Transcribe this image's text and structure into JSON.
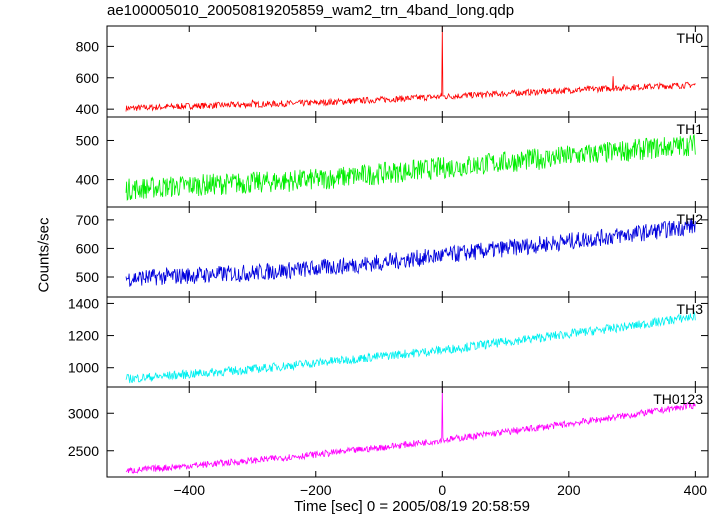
{
  "title": "ae100005010_20050819205859_wam2_trn_4band_long.qdp",
  "xlabel": "Time [sec] 0 = 2005/08/19 20:58:59",
  "ylabel": "Counts/sec",
  "chart_data": {
    "type": "line",
    "title": "ae100005010_20050819205859_wam2_trn_4band_long.qdp",
    "xlabel": "Time [sec] 0 = 2005/08/19 20:58:59",
    "ylabel": "Counts/sec",
    "xlim": [
      -530,
      420
    ],
    "x_ticks": [
      -400,
      -200,
      0,
      200,
      400
    ],
    "grid": false,
    "series": [
      {
        "name": "TH0",
        "color": "#ff0000",
        "ylim": [
          350,
          930
        ],
        "y_ticks": [
          400,
          600,
          800
        ],
        "x": [
          -500,
          -400,
          -300,
          -200,
          -100,
          0,
          100,
          200,
          300,
          400
        ],
        "y": [
          405,
          420,
          430,
          440,
          460,
          480,
          500,
          520,
          540,
          555
        ],
        "noise": 20,
        "spikes": [
          {
            "x": 0,
            "y": 930
          },
          {
            "x": -300,
            "y": 460
          },
          {
            "x": 270,
            "y": 610
          }
        ]
      },
      {
        "name": "TH1",
        "color": "#00ee00",
        "ylim": [
          330,
          560
        ],
        "y_ticks": [
          400,
          500
        ],
        "x": [
          -500,
          -400,
          -300,
          -200,
          -100,
          0,
          100,
          200,
          300,
          400
        ],
        "y": [
          375,
          385,
          392,
          400,
          415,
          430,
          445,
          460,
          475,
          490
        ],
        "noise": 28,
        "spikes": []
      },
      {
        "name": "TH2",
        "color": "#0000dd",
        "ylim": [
          430,
          745
        ],
        "y_ticks": [
          500,
          600,
          700
        ],
        "x": [
          -500,
          -400,
          -300,
          -200,
          -100,
          0,
          100,
          200,
          300,
          400
        ],
        "y": [
          495,
          505,
          515,
          530,
          550,
          575,
          600,
          625,
          650,
          680
        ],
        "noise": 30,
        "spikes": []
      },
      {
        "name": "TH3",
        "color": "#00f0f0",
        "ylim": [
          880,
          1440
        ],
        "y_ticks": [
          1000,
          1200,
          1400
        ],
        "x": [
          -500,
          -400,
          -300,
          -200,
          -100,
          0,
          100,
          200,
          300,
          400
        ],
        "y": [
          930,
          960,
          990,
          1030,
          1070,
          1110,
          1160,
          1210,
          1260,
          1320
        ],
        "noise": 28,
        "spikes": []
      },
      {
        "name": "TH0123",
        "color": "#ff00ff",
        "ylim": [
          2150,
          3350
        ],
        "y_ticks": [
          2500,
          3000
        ],
        "x": [
          -500,
          -400,
          -300,
          -200,
          -100,
          0,
          100,
          200,
          300,
          400
        ],
        "y": [
          2230,
          2300,
          2370,
          2450,
          2540,
          2640,
          2750,
          2860,
          2980,
          3110
        ],
        "noise": 45,
        "spikes": [
          {
            "x": 0,
            "y": 3350
          }
        ]
      }
    ]
  }
}
